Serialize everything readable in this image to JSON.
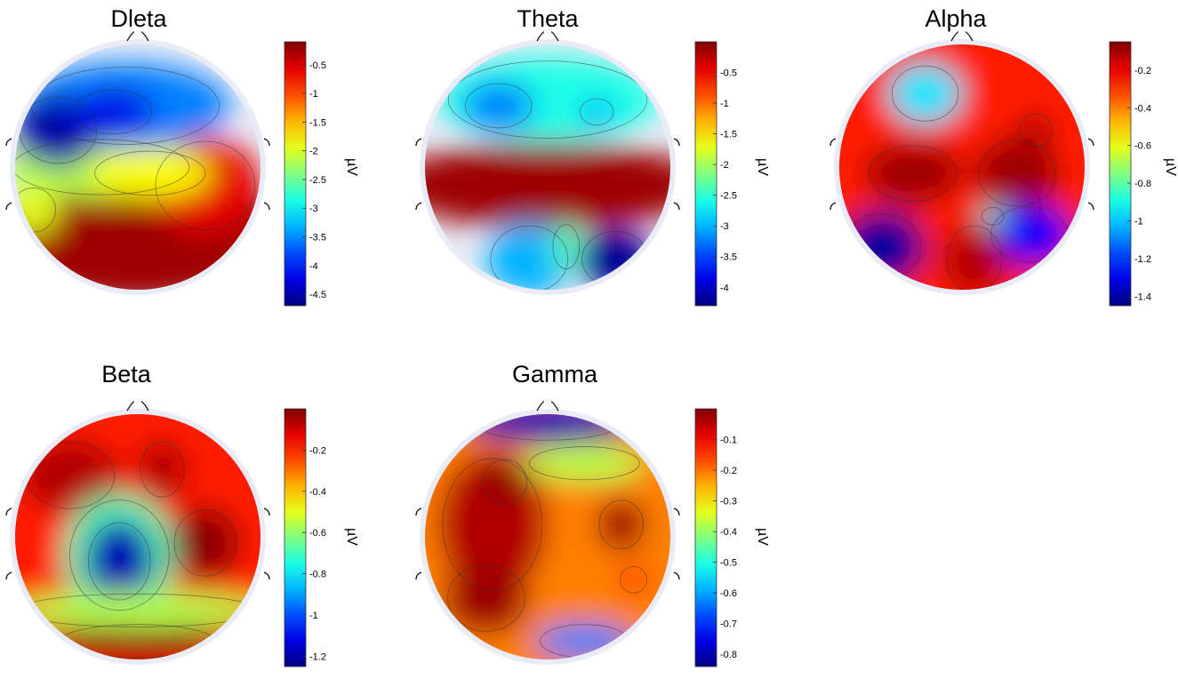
{
  "chart_data": [
    {
      "type": "heatmap",
      "title": "Dleta",
      "unit": "µV",
      "ticks": [
        "-0.5",
        "-1",
        "-1.5",
        "-2",
        "-2.5",
        "-3",
        "-3.5",
        "-4",
        "-4.5"
      ],
      "range": [
        -4.7,
        -0.1
      ],
      "colormap": "jet",
      "regions": [
        {
          "area": "frontal-left",
          "level": "min",
          "value": -4.5
        },
        {
          "area": "frontal-center",
          "level": "low",
          "value": -3.5
        },
        {
          "area": "central",
          "level": "mid",
          "value": -1.8
        },
        {
          "area": "occipital",
          "level": "max",
          "value": -0.3
        }
      ]
    },
    {
      "type": "heatmap",
      "title": "Theta",
      "unit": "µV",
      "ticks": [
        "-0.5",
        "-1",
        "-1.5",
        "-2",
        "-2.5",
        "-3",
        "-3.5",
        "-4"
      ],
      "range": [
        -4.3,
        0.0
      ],
      "colormap": "jet",
      "regions": [
        {
          "area": "frontal",
          "level": "low",
          "value": -3.0
        },
        {
          "area": "central",
          "level": "max",
          "value": -0.2
        },
        {
          "area": "occipital-right",
          "level": "min",
          "value": -4.2
        }
      ]
    },
    {
      "type": "heatmap",
      "title": "Alpha",
      "unit": "µV",
      "ticks": [
        "-0.2",
        "-0.4",
        "-0.6",
        "-0.8",
        "-1",
        "-1.2",
        "-1.4"
      ],
      "range": [
        -1.45,
        -0.05
      ],
      "colormap": "jet",
      "regions": [
        {
          "area": "frontal-left",
          "level": "low",
          "value": -0.9
        },
        {
          "area": "central",
          "level": "max",
          "value": -0.1
        },
        {
          "area": "parietal-left",
          "level": "min",
          "value": -1.4
        },
        {
          "area": "parietal-right",
          "level": "low",
          "value": -1.2
        }
      ]
    },
    {
      "type": "heatmap",
      "title": "Beta",
      "unit": "µV",
      "ticks": [
        "-0.2",
        "-0.4",
        "-0.6",
        "-0.8",
        "-1",
        "-1.2"
      ],
      "range": [
        -1.25,
        0.0
      ],
      "colormap": "jet",
      "regions": [
        {
          "area": "frontal",
          "level": "max",
          "value": -0.1
        },
        {
          "area": "central-left",
          "level": "min",
          "value": -1.2
        },
        {
          "area": "temporal-right",
          "level": "max",
          "value": -0.05
        },
        {
          "area": "occipital",
          "level": "max",
          "value": -0.05
        }
      ]
    },
    {
      "type": "heatmap",
      "title": "Gamma",
      "unit": "µV",
      "ticks": [
        "-0.1",
        "-0.2",
        "-0.3",
        "-0.4",
        "-0.5",
        "-0.6",
        "-0.7",
        "-0.8"
      ],
      "range": [
        -0.84,
        0.0
      ],
      "colormap": "jet",
      "regions": [
        {
          "area": "frontal-pole",
          "level": "min",
          "value": -0.8
        },
        {
          "area": "left-hemisphere",
          "level": "max",
          "value": -0.05
        },
        {
          "area": "right-temporal",
          "level": "high",
          "value": -0.1
        },
        {
          "area": "occipital",
          "level": "low",
          "value": -0.6
        }
      ]
    }
  ]
}
